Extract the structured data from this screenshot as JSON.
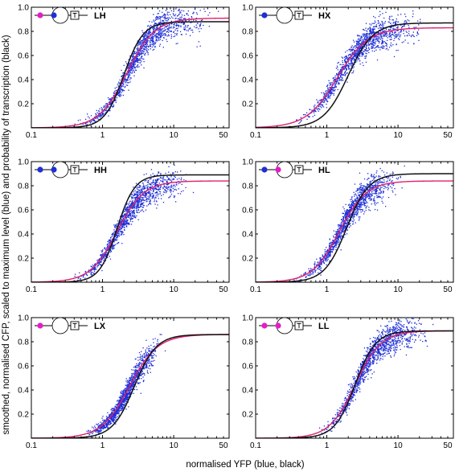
{
  "figure": {
    "xlabel": "normalised YFP  (blue, black)",
    "ylabel": "smoothed, normalised CFP, scaled to maximum  level (blue) and probability of transcription (black)"
  },
  "colors": {
    "scatter": "#1f2fd6",
    "fit": "#e0206e",
    "model": "#111111",
    "magenta_site": "#e21fc4",
    "blue_site": "#1f2fd6"
  },
  "chart_data": [
    {
      "type": "scatter",
      "title": "LH",
      "x_scale": "log",
      "xlim": [
        0.1,
        60
      ],
      "ylim": [
        0,
        1
      ],
      "xticks": [
        "0.1",
        "1",
        "10",
        "50"
      ],
      "yticks": [
        "0.2",
        "0.4",
        "0.6",
        "0.8",
        "1.0"
      ],
      "sites": [
        "magenta",
        "blue"
      ],
      "fit_curve": {
        "ymax": 0.91,
        "x50": 2.2,
        "n": 2.2
      },
      "model_curve": {
        "ymax": 0.88,
        "x50": 2.0,
        "n": 3.2
      },
      "scatter_x_range": [
        0.3,
        45
      ]
    },
    {
      "type": "scatter",
      "title": "HX",
      "x_scale": "log",
      "xlim": [
        0.1,
        60
      ],
      "ylim": [
        0,
        1
      ],
      "xticks": [
        "0.1",
        "1",
        "10",
        "50"
      ],
      "yticks": [
        "0.2",
        "0.4",
        "0.6",
        "0.8",
        "1.0"
      ],
      "sites": [
        "blue",
        "empty"
      ],
      "fit_curve": {
        "ymax": 0.83,
        "x50": 1.4,
        "n": 2.0
      },
      "model_curve": {
        "ymax": 0.87,
        "x50": 2.0,
        "n": 2.5
      },
      "scatter_x_range": [
        0.3,
        30
      ]
    },
    {
      "type": "scatter",
      "title": "HH",
      "x_scale": "log",
      "xlim": [
        0.1,
        60
      ],
      "ylim": [
        0,
        1
      ],
      "xticks": [
        "0.1",
        "1",
        "10",
        "50"
      ],
      "yticks": [
        "0.2",
        "0.4",
        "0.6",
        "0.8",
        "1.0"
      ],
      "sites": [
        "blue",
        "blue"
      ],
      "fit_curve": {
        "ymax": 0.84,
        "x50": 1.6,
        "n": 2.3
      },
      "model_curve": {
        "ymax": 0.89,
        "x50": 1.6,
        "n": 3.5
      },
      "scatter_x_range": [
        0.3,
        20
      ]
    },
    {
      "type": "scatter",
      "title": "HL",
      "x_scale": "log",
      "xlim": [
        0.1,
        60
      ],
      "ylim": [
        0,
        1
      ],
      "xticks": [
        "0.1",
        "1",
        "10",
        "50"
      ],
      "yticks": [
        "0.2",
        "0.4",
        "0.6",
        "0.8",
        "1.0"
      ],
      "sites": [
        "blue",
        "magenta"
      ],
      "fit_curve": {
        "ymax": 0.84,
        "x50": 1.5,
        "n": 2.3
      },
      "model_curve": {
        "ymax": 0.9,
        "x50": 1.9,
        "n": 2.8
      },
      "scatter_x_range": [
        0.3,
        14
      ]
    },
    {
      "type": "scatter",
      "title": "LX",
      "x_scale": "log",
      "xlim": [
        0.1,
        60
      ],
      "ylim": [
        0,
        1
      ],
      "xticks": [
        "0.1",
        "1",
        "10",
        "50"
      ],
      "yticks": [
        "0.2",
        "0.4",
        "0.6",
        "0.8",
        "1.0"
      ],
      "sites": [
        "magenta",
        "empty"
      ],
      "fit_curve": {
        "ymax": 0.86,
        "x50": 2.4,
        "n": 2.2
      },
      "model_curve": {
        "ymax": 0.86,
        "x50": 2.8,
        "n": 2.8
      },
      "scatter_x_range": [
        0.5,
        8
      ]
    },
    {
      "type": "scatter",
      "title": "LL",
      "x_scale": "log",
      "xlim": [
        0.1,
        60
      ],
      "ylim": [
        0,
        1
      ],
      "xticks": [
        "0.1",
        "1",
        "10",
        "50"
      ],
      "yticks": [
        "0.2",
        "0.4",
        "0.6",
        "0.8",
        "1.0"
      ],
      "sites": [
        "magenta",
        "magenta"
      ],
      "fit_curve": {
        "ymax": 0.89,
        "x50": 2.5,
        "n": 2.4
      },
      "model_curve": {
        "ymax": 0.89,
        "x50": 2.5,
        "n": 3.0
      },
      "scatter_x_range": [
        0.6,
        35
      ]
    }
  ]
}
